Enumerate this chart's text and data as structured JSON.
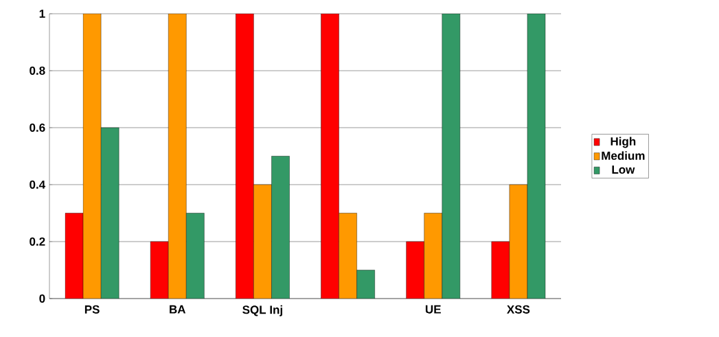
{
  "chart_data": {
    "type": "bar",
    "categories": [
      "PS",
      "BA",
      "SQL Inj",
      null,
      "UE",
      "XSS"
    ],
    "series": [
      {
        "name": "High",
        "color": "#ff0000",
        "values": [
          0.3,
          0.2,
          1,
          1,
          0.2,
          0.2
        ]
      },
      {
        "name": "Medium",
        "color": "#ff9900",
        "values": [
          1,
          1,
          0.4,
          0.3,
          0.3,
          0.4
        ]
      },
      {
        "name": "Low",
        "color": "#339966",
        "values": [
          0.6,
          0.3,
          0.5,
          0.1,
          1,
          1
        ]
      }
    ],
    "ylim": [
      0,
      1
    ],
    "yticks": [
      0,
      0.2,
      0.4,
      0.6,
      0.8,
      1
    ],
    "grid": "y",
    "legend": "right"
  }
}
